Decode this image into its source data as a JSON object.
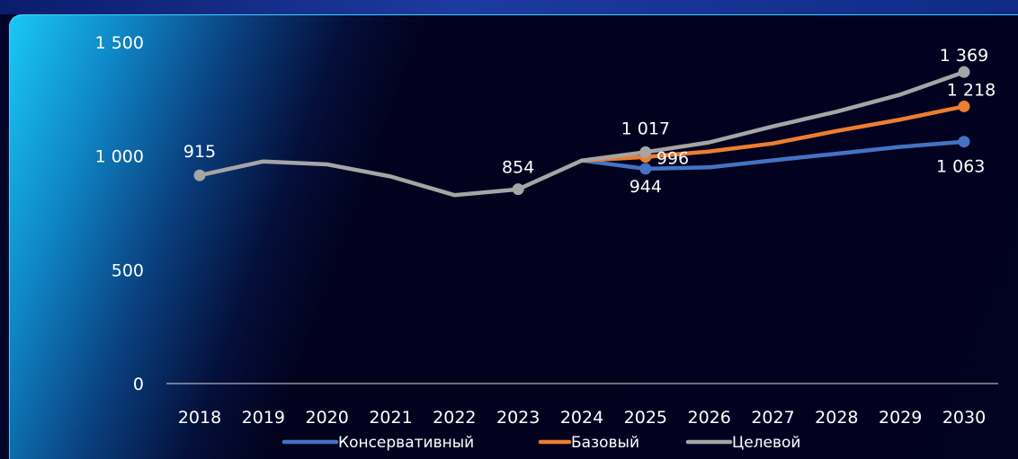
{
  "chart_data": {
    "type": "line",
    "title": "",
    "xlabel": "",
    "ylabel": "",
    "ylim": [
      0,
      1500
    ],
    "yticks": [
      0,
      500,
      1000,
      1500
    ],
    "ytick_labels": [
      "0",
      "500",
      "1 000",
      "1 500"
    ],
    "x": [
      "2018",
      "2019",
      "2020",
      "2021",
      "2022",
      "2023",
      "2024",
      "2025",
      "2026",
      "2027",
      "2028",
      "2029",
      "2030"
    ],
    "legend_position": "bottom",
    "grid": false,
    "series": [
      {
        "name": "Консервативный",
        "color": "#4472c4",
        "values": [
          915,
          976,
          963,
          910,
          828,
          854,
          980,
          944,
          950,
          981,
          1010,
          1040,
          1063
        ],
        "markers": [
          7,
          12
        ],
        "labels": [
          {
            "index": 7,
            "text": "944"
          },
          {
            "index": 12,
            "text": "1 063"
          }
        ]
      },
      {
        "name": "Базовый",
        "color": "#ed7d31",
        "values": [
          915,
          976,
          963,
          910,
          828,
          854,
          980,
          996,
          1020,
          1055,
          1110,
          1160,
          1218
        ],
        "markers": [
          7,
          12
        ],
        "labels": [
          {
            "index": 7,
            "text": "996"
          },
          {
            "index": 12,
            "text": "1 218"
          }
        ]
      },
      {
        "name": "Целевой",
        "color": "#a5a5a5",
        "values": [
          915,
          976,
          963,
          910,
          828,
          854,
          980,
          1017,
          1060,
          1130,
          1195,
          1270,
          1369
        ],
        "markers": [
          0,
          5,
          7,
          12
        ],
        "labels": [
          {
            "index": 0,
            "text": "915"
          },
          {
            "index": 5,
            "text": "854"
          },
          {
            "index": 7,
            "text": "1 017"
          },
          {
            "index": 12,
            "text": "1 369"
          }
        ]
      }
    ]
  }
}
